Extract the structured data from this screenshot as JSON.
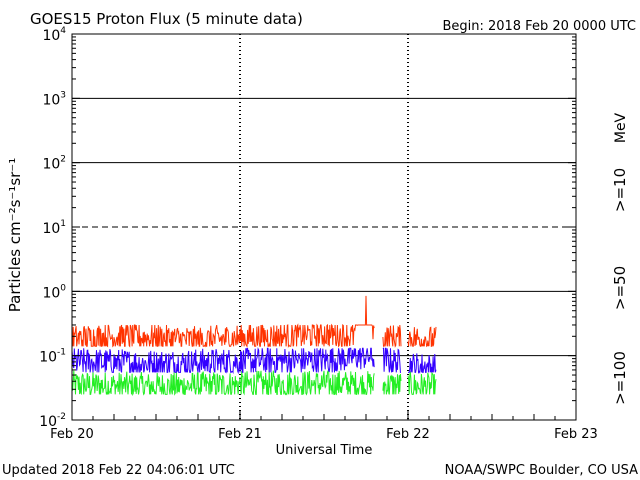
{
  "chart_data": {
    "type": "line",
    "title": "GOES15 Proton Flux (5 minute data)",
    "begin_label": "Begin: 2018 Feb 20 0000 UTC",
    "xlabel": "Universal Time",
    "ylabel": "Particles cm⁻²s⁻¹sr⁻¹",
    "y_scale": "log",
    "ylim": [
      0.01,
      10000
    ],
    "y_ticks": [
      {
        "value": 10000,
        "base": "10",
        "exp": "4"
      },
      {
        "value": 1000,
        "base": "10",
        "exp": "3"
      },
      {
        "value": 100,
        "base": "10",
        "exp": "2"
      },
      {
        "value": 10,
        "base": "10",
        "exp": "1"
      },
      {
        "value": 1,
        "base": "10",
        "exp": "0"
      },
      {
        "value": 0.1,
        "base": "10",
        "exp": "-1"
      },
      {
        "value": 0.01,
        "base": "10",
        "exp": "-2"
      }
    ],
    "xlim_days": [
      0,
      3
    ],
    "x_ticks": [
      {
        "day": 0,
        "label": "Feb 20"
      },
      {
        "day": 1,
        "label": "Feb 21"
      },
      {
        "day": 2,
        "label": "Feb 22"
      },
      {
        "day": 3,
        "label": "Feb 23"
      }
    ],
    "threshold_lines": [
      {
        "value": 1000,
        "style": "solid"
      },
      {
        "value": 100,
        "style": "solid"
      },
      {
        "value": 10,
        "style": "dashed"
      },
      {
        "value": 1,
        "style": "solid"
      },
      {
        "value": 0.1,
        "style": "solid"
      }
    ],
    "legend_unit": "MeV",
    "series": [
      {
        "name": ">=10",
        "color": "#ff3300",
        "typical_range": [
          0.14,
          0.3
        ],
        "points": [
          [
            0.0,
            0.18
          ],
          [
            0.25,
            0.2
          ],
          [
            0.5,
            0.19
          ],
          [
            0.75,
            0.17
          ],
          [
            1.0,
            0.19
          ],
          [
            1.25,
            0.2
          ],
          [
            1.5,
            0.22
          ],
          [
            1.68,
            0.2
          ],
          [
            1.75,
            0.85
          ],
          [
            1.8,
            0.18
          ],
          [
            2.0,
            0.19
          ],
          [
            2.17,
            0.17
          ]
        ]
      },
      {
        "name": ">=50",
        "color": "#3300ff",
        "typical_range": [
          0.055,
          0.13
        ],
        "points": [
          [
            0.0,
            0.08
          ],
          [
            0.5,
            0.075
          ],
          [
            1.0,
            0.08
          ],
          [
            1.5,
            0.085
          ],
          [
            1.75,
            0.1
          ],
          [
            2.0,
            0.07
          ],
          [
            2.17,
            0.065
          ]
        ]
      },
      {
        "name": ">=100",
        "color": "#22ee22",
        "typical_range": [
          0.025,
          0.07
        ],
        "points": [
          [
            0.0,
            0.035
          ],
          [
            0.5,
            0.033
          ],
          [
            1.0,
            0.035
          ],
          [
            1.5,
            0.036
          ],
          [
            2.0,
            0.034
          ],
          [
            2.17,
            0.032
          ]
        ]
      }
    ],
    "data_gaps_days": [
      [
        1.8,
        1.85
      ],
      [
        1.96,
        2.0
      ]
    ]
  },
  "footer": {
    "updated": "Updated 2018 Feb 22 04:06:01 UTC",
    "source": "NOAA/SWPC Boulder, CO USA"
  }
}
